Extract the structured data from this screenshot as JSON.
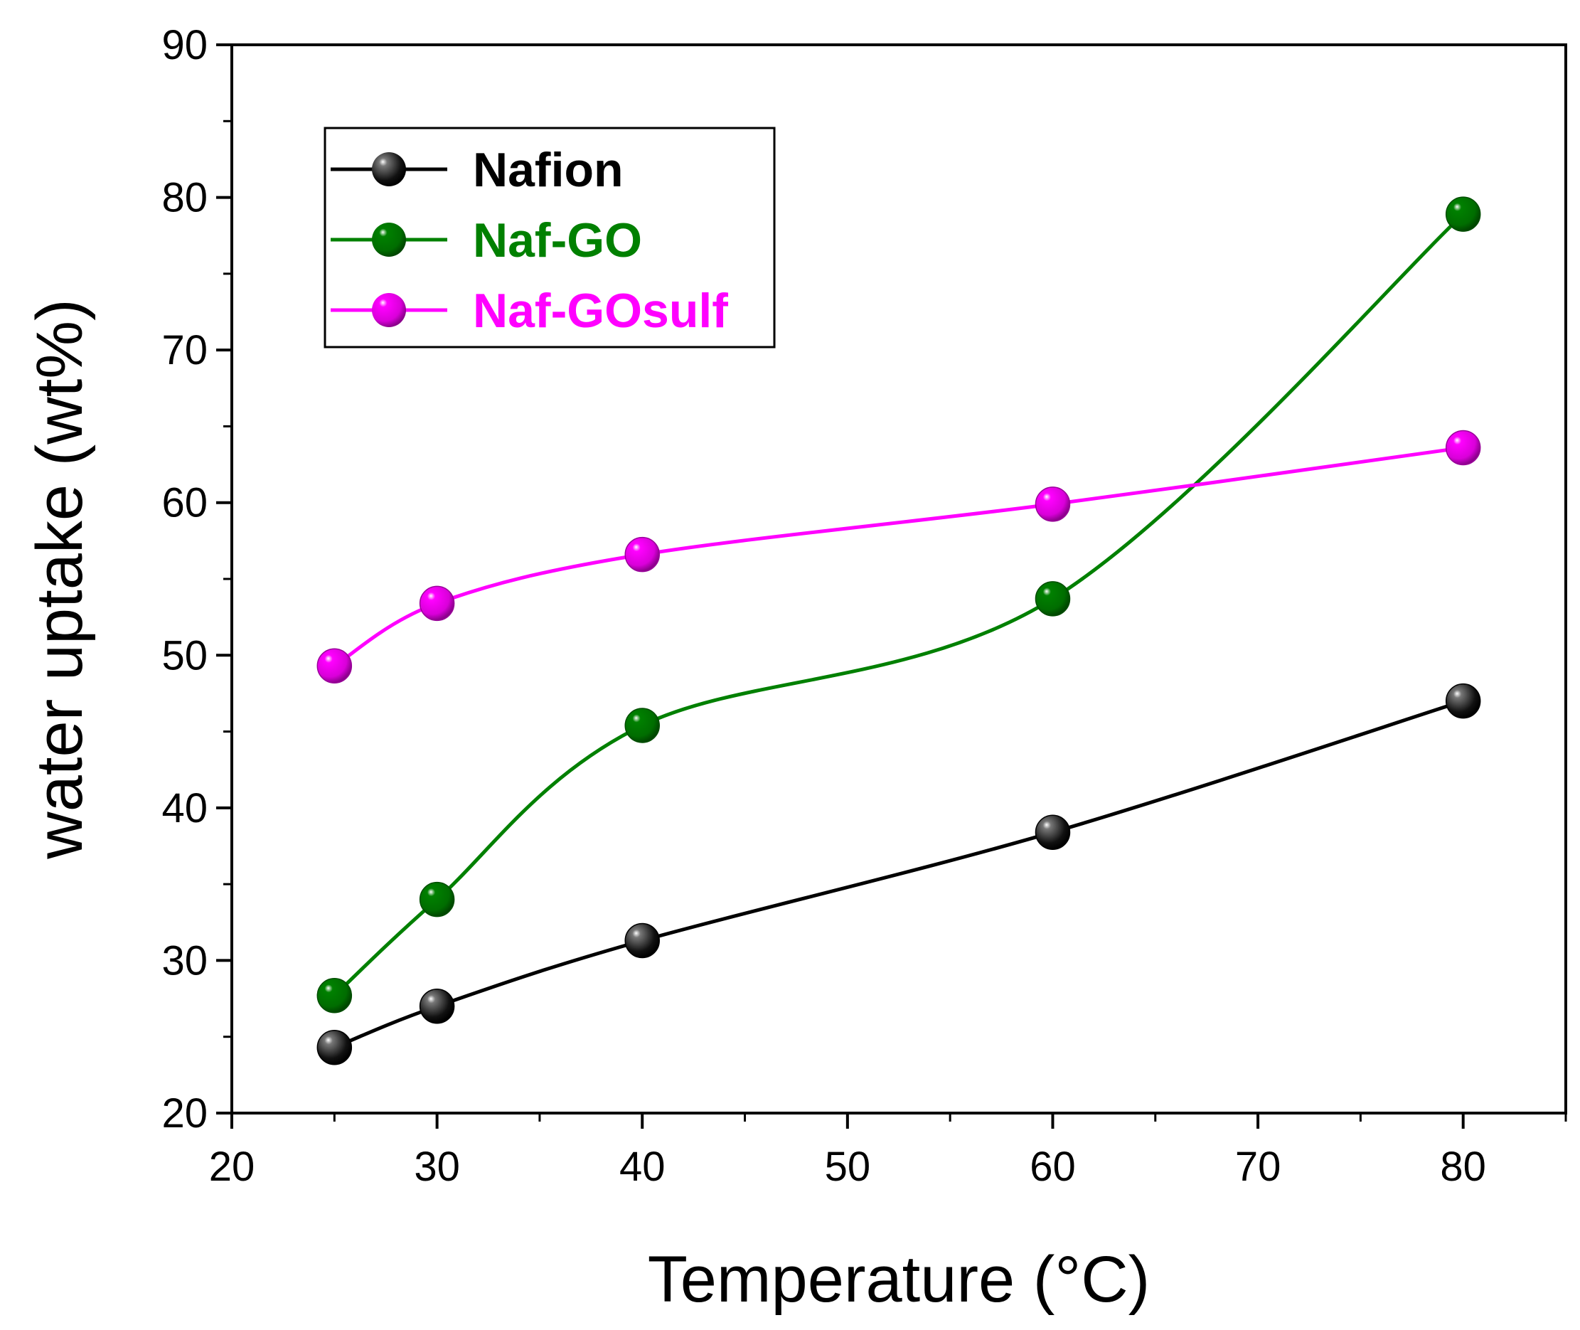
{
  "chart_data": {
    "type": "line",
    "title": "",
    "xlabel": "Temperature (°C)",
    "ylabel": "water uptake (wt%)",
    "xlim": [
      20,
      85
    ],
    "ylim": [
      20,
      90
    ],
    "xticks": [
      20,
      30,
      40,
      50,
      60,
      70,
      80
    ],
    "yticks": [
      20,
      30,
      40,
      50,
      60,
      70,
      80,
      90
    ],
    "grid": false,
    "legend_position": "top-left",
    "series": [
      {
        "name": "Nafion",
        "color": "#000000",
        "x": [
          25,
          30,
          40,
          60,
          80
        ],
        "values": [
          24.3,
          27.0,
          31.3,
          38.4,
          47.0
        ]
      },
      {
        "name": "Naf-GO",
        "color": "#008000",
        "x": [
          25,
          30,
          40,
          60,
          80
        ],
        "values": [
          27.7,
          34.0,
          45.4,
          53.7,
          78.9
        ]
      },
      {
        "name": "Naf-GOsulf",
        "color": "#FF00FF",
        "x": [
          25,
          30,
          40,
          60,
          80
        ],
        "values": [
          49.3,
          53.4,
          56.6,
          59.9,
          63.6
        ]
      }
    ]
  }
}
